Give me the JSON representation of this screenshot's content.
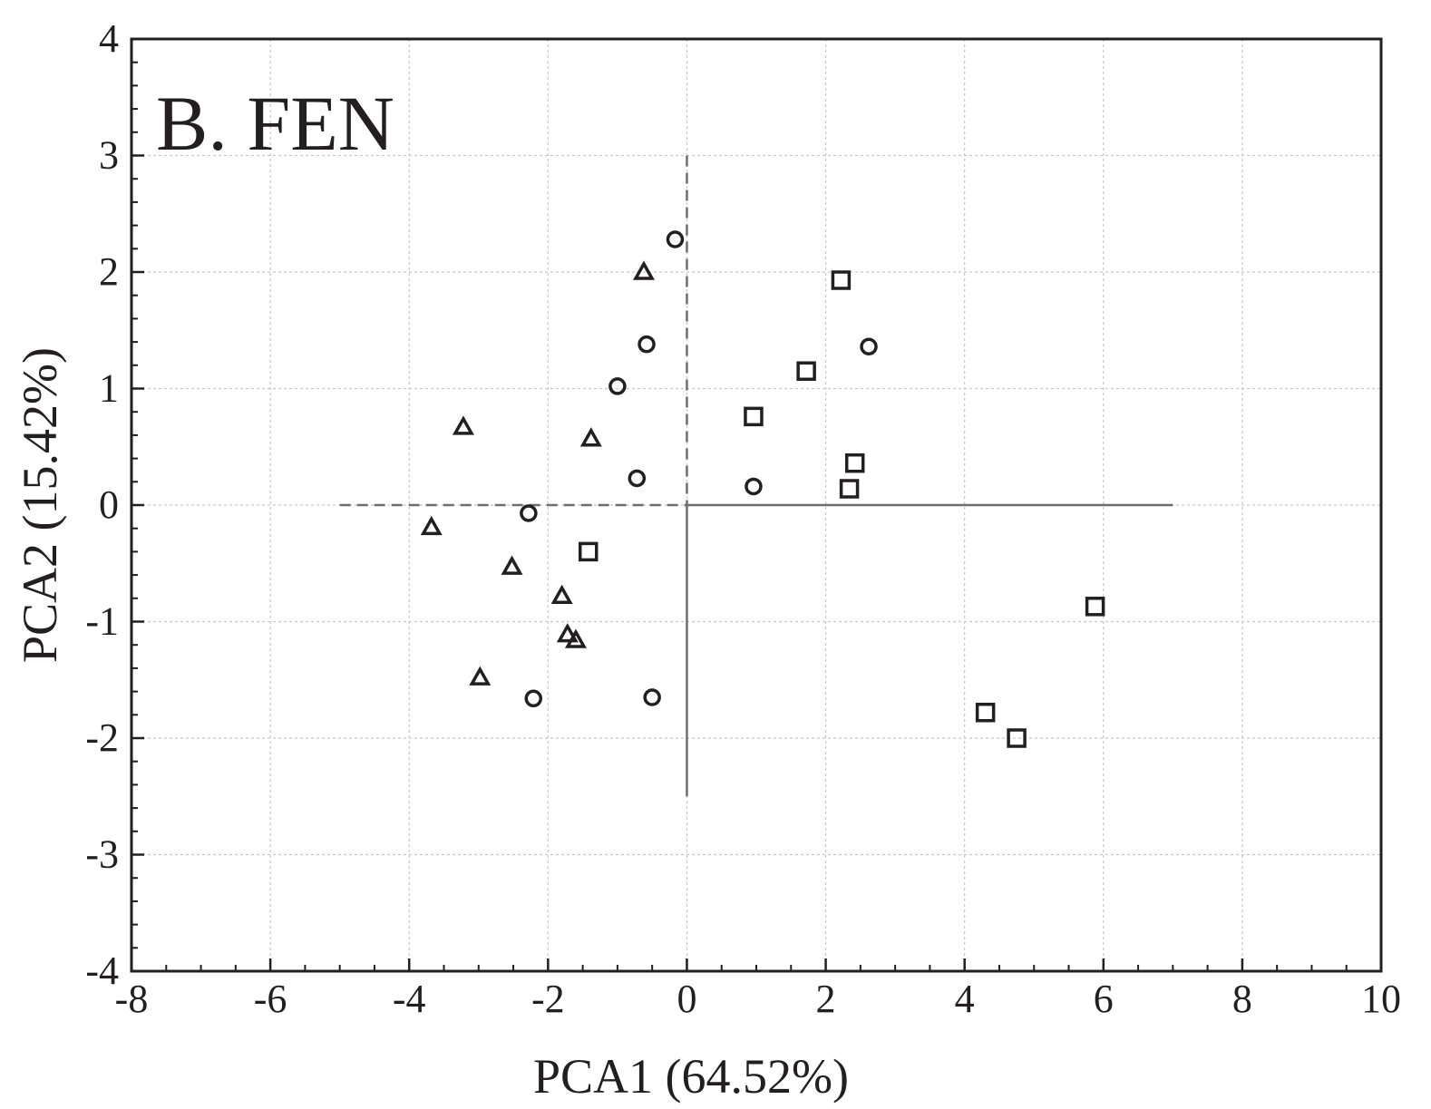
{
  "chart_data": {
    "type": "scatter",
    "title": "B. FEN",
    "xlabel": "PCA1 (64.52%)",
    "ylabel": "PCA2 (15.42%)",
    "xlim": [
      -8,
      10
    ],
    "ylim": [
      -4,
      4
    ],
    "xticks": [
      "-8",
      "-6",
      "-4",
      "-2",
      "0",
      "2",
      "4",
      "6",
      "8",
      "10"
    ],
    "yticks": [
      "-4",
      "-3",
      "-2",
      "-1",
      "0",
      "1",
      "2",
      "3",
      "4"
    ],
    "grid": true,
    "reference_lines": {
      "horizontal": {
        "y": 0,
        "x_from": -5,
        "x_to": 7
      },
      "vertical": {
        "x": 0,
        "y_from": -2.5,
        "y_to": 3
      }
    },
    "series": [
      {
        "marker": "triangle",
        "points": [
          {
            "x": -0.62,
            "y": 2.0
          },
          {
            "x": -3.22,
            "y": 0.67
          },
          {
            "x": -1.38,
            "y": 0.57
          },
          {
            "x": -3.68,
            "y": -0.19
          },
          {
            "x": -2.52,
            "y": -0.53
          },
          {
            "x": -1.8,
            "y": -0.78
          },
          {
            "x": -1.72,
            "y": -1.11
          },
          {
            "x": -1.6,
            "y": -1.16
          },
          {
            "x": -2.98,
            "y": -1.48
          }
        ]
      },
      {
        "marker": "circle",
        "points": [
          {
            "x": -0.17,
            "y": 2.28
          },
          {
            "x": -0.58,
            "y": 1.38
          },
          {
            "x": -1.0,
            "y": 1.02
          },
          {
            "x": 2.62,
            "y": 1.36
          },
          {
            "x": -0.72,
            "y": 0.23
          },
          {
            "x": 0.96,
            "y": 0.16
          },
          {
            "x": -2.28,
            "y": -0.07
          },
          {
            "x": -2.21,
            "y": -1.66
          },
          {
            "x": -0.5,
            "y": -1.65
          }
        ]
      },
      {
        "marker": "square",
        "points": [
          {
            "x": 2.22,
            "y": 1.93
          },
          {
            "x": 1.72,
            "y": 1.15
          },
          {
            "x": 0.96,
            "y": 0.76
          },
          {
            "x": 2.42,
            "y": 0.36
          },
          {
            "x": 2.34,
            "y": 0.14
          },
          {
            "x": -1.42,
            "y": -0.4
          },
          {
            "x": 5.88,
            "y": -0.87
          },
          {
            "x": 4.3,
            "y": -1.78
          },
          {
            "x": 4.75,
            "y": -2.0
          }
        ]
      }
    ],
    "colors": {
      "ink": "#231f20",
      "grid": "#c8c8c8",
      "refline": "#6d6e71"
    }
  }
}
